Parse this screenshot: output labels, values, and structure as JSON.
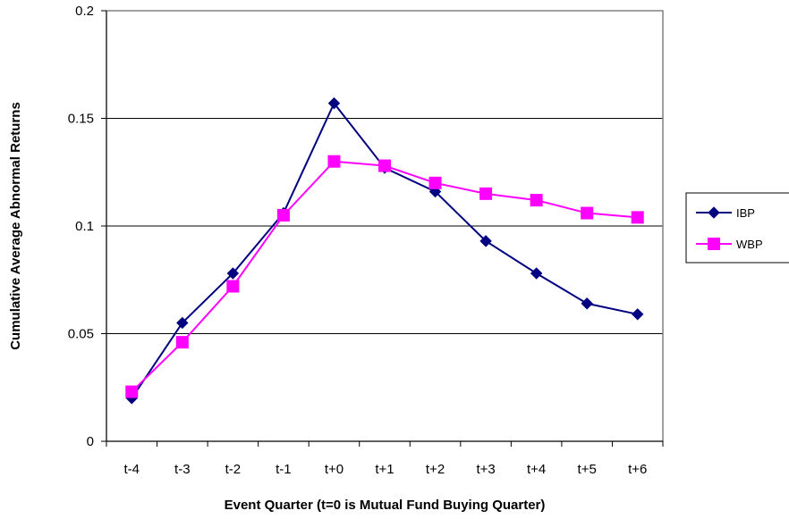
{
  "chart_data": {
    "type": "line",
    "title": "",
    "xlabel": "Event Quarter (t=0 is Mutual Fund Buying Quarter)",
    "ylabel": "Cumulative Average Abnormal Returns",
    "categories": [
      "t-4",
      "t-3",
      "t-2",
      "t-1",
      "t+0",
      "t+1",
      "t+2",
      "t+3",
      "t+4",
      "t+5",
      "t+6"
    ],
    "ylim": [
      0,
      0.2
    ],
    "yticks": [
      0,
      0.05,
      0.1,
      0.15,
      0.2
    ],
    "ytick_labels": [
      "0",
      "0.05",
      "0.1",
      "0.15",
      "0.2"
    ],
    "grid": true,
    "legend_position": "right",
    "series": [
      {
        "name": "IBP",
        "color": "#000080",
        "marker": "diamond",
        "values": [
          0.02,
          0.055,
          0.078,
          0.106,
          0.157,
          0.127,
          0.116,
          0.093,
          0.078,
          0.064,
          0.059
        ]
      },
      {
        "name": "WBP",
        "color": "#FF00FF",
        "marker": "square",
        "values": [
          0.023,
          0.046,
          0.072,
          0.105,
          0.13,
          0.128,
          0.12,
          0.115,
          0.112,
          0.106,
          0.104
        ]
      }
    ]
  }
}
